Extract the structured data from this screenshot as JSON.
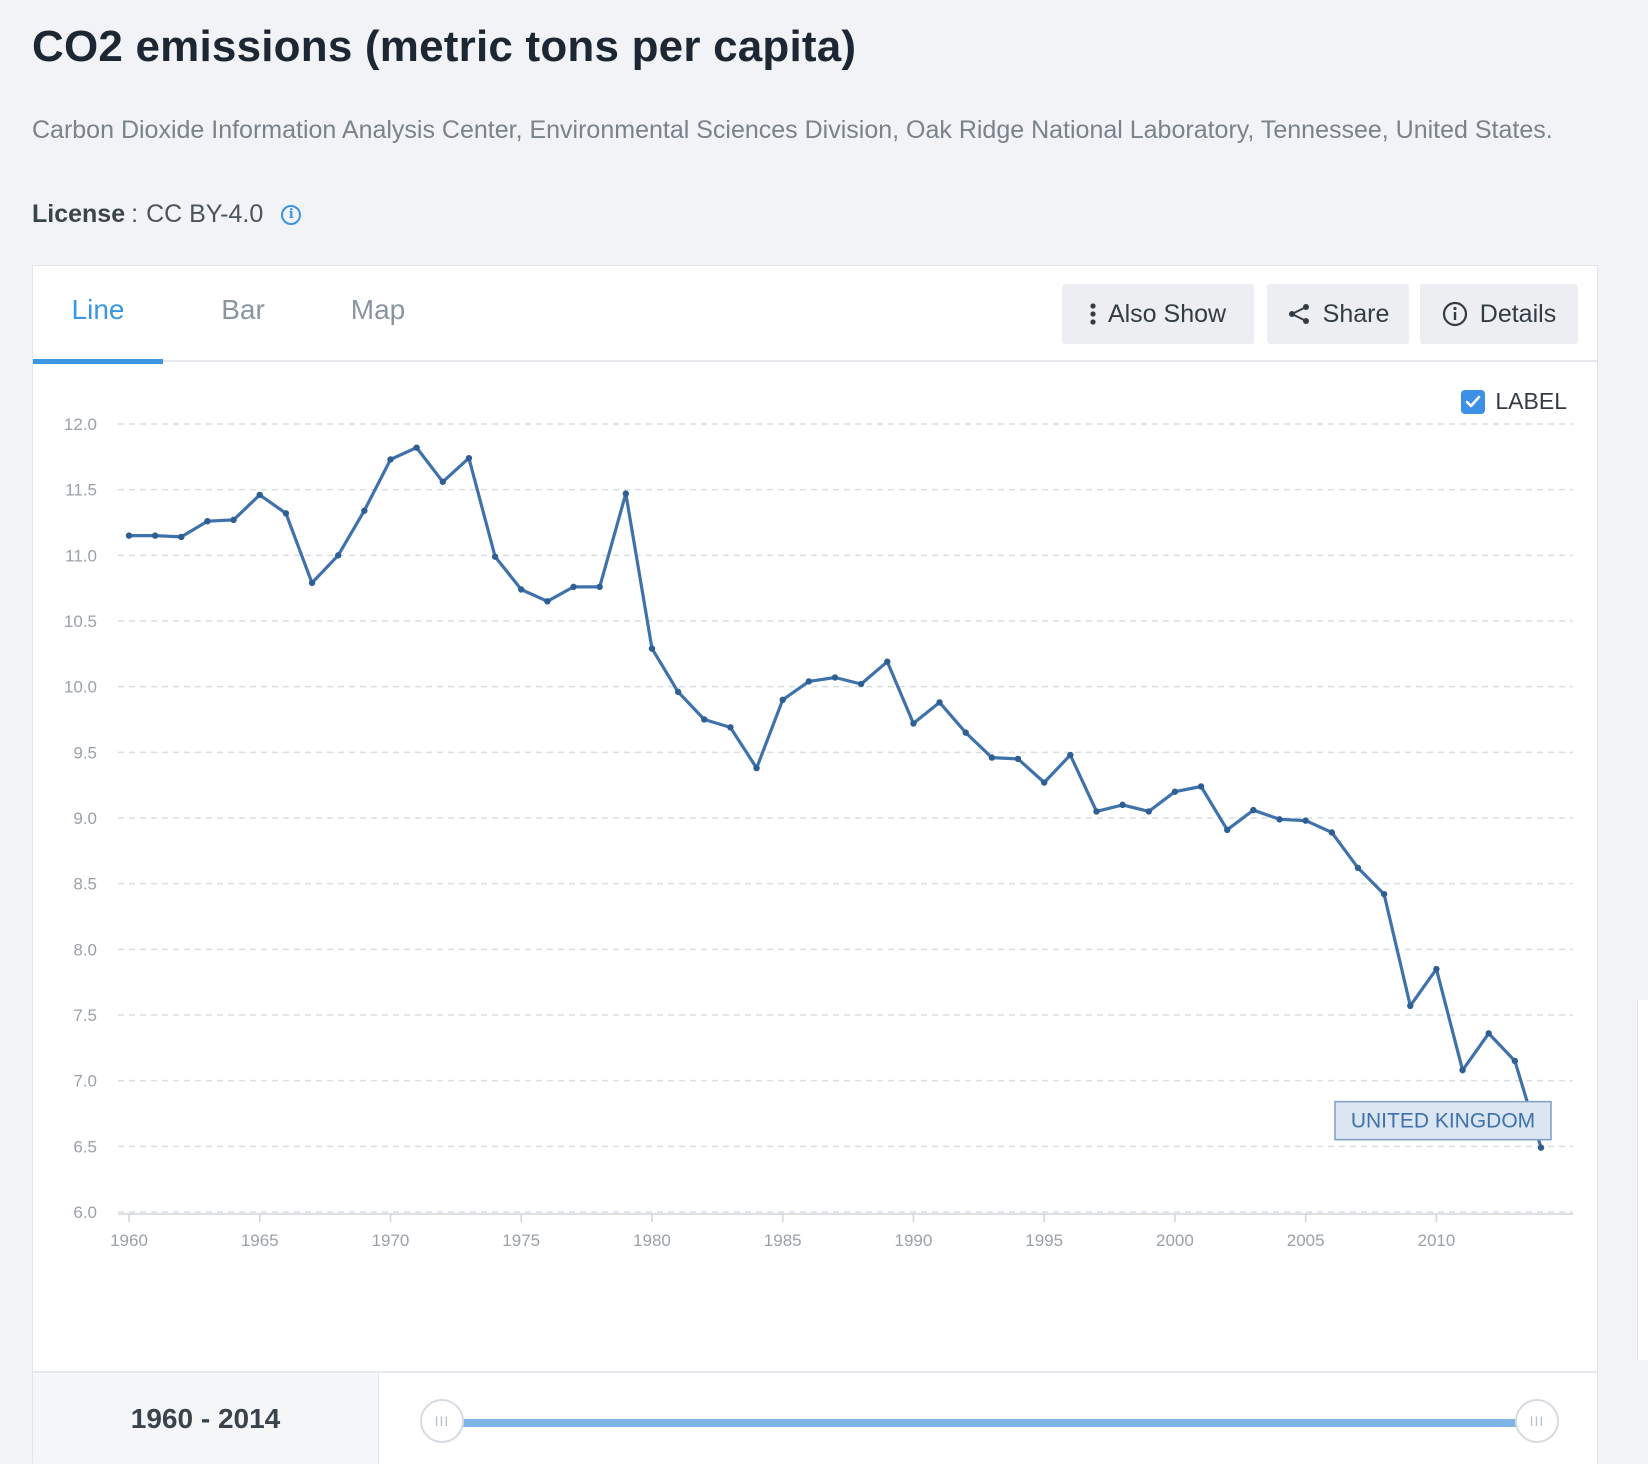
{
  "page": {
    "title": "CO2 emissions (metric tons per capita)",
    "source": "Carbon Dioxide Information Analysis Center, Environmental Sciences Division, Oak Ridge National Laboratory, Tennessee, United States.",
    "license_label": "License",
    "license_sep": ":",
    "license_value": "CC BY-4.0"
  },
  "tabs": [
    {
      "label": "Line",
      "active": true
    },
    {
      "label": "Bar",
      "active": false
    },
    {
      "label": "Map",
      "active": false
    }
  ],
  "actions": {
    "also_show": "Also Show",
    "share": "Share",
    "details": "Details"
  },
  "label_toggle": {
    "text": "LABEL",
    "checked": true
  },
  "range": {
    "text": "1960 - 2014",
    "start_fraction": 0,
    "end_fraction": 1
  },
  "colors": {
    "accent": "#3d96e3",
    "line": "#3f72aa",
    "grid": "#d9dde2",
    "tick_text": "#9aa1a9"
  },
  "chart_data": {
    "type": "line",
    "title": "",
    "xlabel": "",
    "ylabel": "",
    "xlim": [
      1960,
      2014
    ],
    "ylim": [
      6.0,
      12.0
    ],
    "yticks": [
      "12.0",
      "11.5",
      "11.0",
      "10.5",
      "10.0",
      "9.5",
      "9.0",
      "8.5",
      "8.0",
      "7.5",
      "7.0",
      "6.5",
      "6.0"
    ],
    "xticks": [
      "1960",
      "1965",
      "1970",
      "1975",
      "1980",
      "1985",
      "1990",
      "1995",
      "2000",
      "2005",
      "2010"
    ],
    "grid": true,
    "series": [
      {
        "name": "UNITED KINGDOM",
        "x": [
          1960,
          1961,
          1962,
          1963,
          1964,
          1965,
          1966,
          1967,
          1968,
          1969,
          1970,
          1971,
          1972,
          1973,
          1974,
          1975,
          1976,
          1977,
          1978,
          1979,
          1980,
          1981,
          1982,
          1983,
          1984,
          1985,
          1986,
          1987,
          1988,
          1989,
          1990,
          1991,
          1992,
          1993,
          1994,
          1995,
          1996,
          1997,
          1998,
          1999,
          2000,
          2001,
          2002,
          2003,
          2004,
          2005,
          2006,
          2007,
          2008,
          2009,
          2010,
          2011,
          2012,
          2013,
          2014
        ],
        "values": [
          11.15,
          11.15,
          11.14,
          11.26,
          11.27,
          11.46,
          11.32,
          10.79,
          11.0,
          11.34,
          11.73,
          11.82,
          11.56,
          11.74,
          10.99,
          10.74,
          10.65,
          10.76,
          10.76,
          11.47,
          10.29,
          9.96,
          9.75,
          9.69,
          9.38,
          9.9,
          10.04,
          10.07,
          10.02,
          10.19,
          9.72,
          9.88,
          9.65,
          9.46,
          9.45,
          9.27,
          9.48,
          9.05,
          9.1,
          9.05,
          9.2,
          9.24,
          8.91,
          9.06,
          8.99,
          8.98,
          8.89,
          8.62,
          8.42,
          7.57,
          7.85,
          7.08,
          7.36,
          7.15,
          6.49
        ]
      }
    ]
  }
}
